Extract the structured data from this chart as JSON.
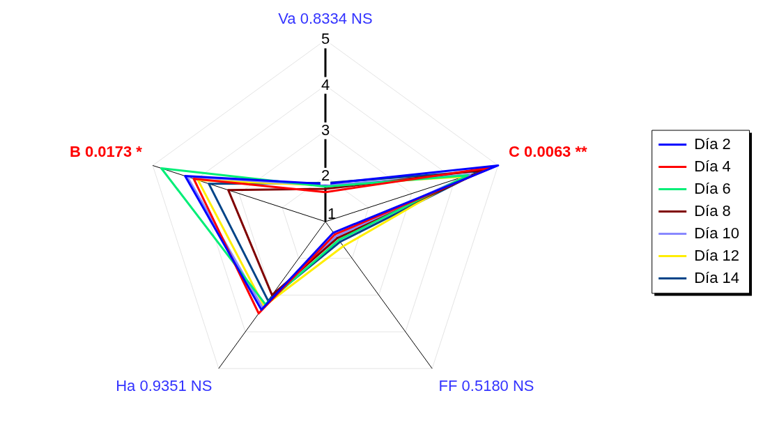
{
  "chart_data": {
    "type": "radar",
    "categories": [
      "Va 0.8334 NS",
      "C 0.0063 **",
      "FF 0.5180 NS",
      "Ha 0.9351 NS",
      "B 0.0173 *"
    ],
    "ylim": [
      1,
      5
    ],
    "yticks": [
      1,
      2,
      3,
      4,
      5
    ],
    "grid": true,
    "legend": "right",
    "marker": "none",
    "series": [
      {
        "name": "Día 2",
        "color": "#0000ff",
        "values": [
          1.83,
          5.0,
          1.3,
          3.4,
          4.25
        ]
      },
      {
        "name": "Día 4",
        "color": "#ff0000",
        "values": [
          1.65,
          4.87,
          1.35,
          3.5,
          4.05
        ]
      },
      {
        "name": "Día 6",
        "color": "#00ee77",
        "values": [
          1.77,
          4.3,
          1.5,
          3.25,
          4.8
        ]
      },
      {
        "name": "Día 8",
        "color": "#800000",
        "values": [
          1.72,
          4.7,
          1.45,
          3.0,
          3.25
        ]
      },
      {
        "name": "Día 10",
        "color": "#8888ff",
        "values": [
          1.8,
          4.35,
          1.4,
          3.35,
          4.2
        ]
      },
      {
        "name": "Día 12",
        "color": "#ffee00",
        "values": [
          1.8,
          4.2,
          1.67,
          3.3,
          3.95
        ]
      },
      {
        "name": "Día 14",
        "color": "#004488",
        "values": [
          1.85,
          4.6,
          1.55,
          3.15,
          3.7
        ]
      }
    ]
  }
}
